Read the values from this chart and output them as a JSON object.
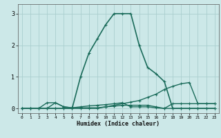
{
  "title": "",
  "xlabel": "Humidex (Indice chaleur)",
  "bg_color": "#cce8e8",
  "line_color": "#1a6b5a",
  "grid_color": "#aacece",
  "xlim": [
    -0.5,
    23.5
  ],
  "ylim": [
    -0.15,
    3.3
  ],
  "yticks": [
    0,
    1,
    2,
    3
  ],
  "xticks": [
    0,
    1,
    2,
    3,
    4,
    5,
    6,
    7,
    8,
    9,
    10,
    11,
    12,
    13,
    14,
    15,
    16,
    17,
    18,
    19,
    20,
    21,
    22,
    23
  ],
  "series": [
    {
      "x": [
        0,
        1,
        2,
        3,
        4,
        5,
        6,
        7,
        8,
        9,
        10,
        11,
        12,
        13,
        14,
        15,
        16,
        17,
        18,
        19,
        20,
        21,
        22,
        23
      ],
      "y": [
        0,
        0,
        0,
        0,
        0,
        0,
        0,
        1.0,
        1.75,
        2.2,
        2.65,
        3.0,
        3.0,
        3.0,
        2.0,
        1.3,
        1.1,
        0.85,
        0,
        0,
        0,
        0,
        0,
        0
      ],
      "linewidth": 1.2,
      "marker": "+"
    },
    {
      "x": [
        0,
        1,
        2,
        3,
        4,
        5,
        6,
        7,
        8,
        9,
        10,
        11,
        12,
        13,
        14,
        15,
        16,
        17,
        18,
        19,
        20,
        21,
        22,
        23
      ],
      "y": [
        0,
        0,
        0,
        0,
        0,
        0,
        0,
        0,
        0,
        0,
        0.05,
        0.1,
        0.15,
        0.2,
        0.25,
        0.35,
        0.45,
        0.6,
        0.7,
        0.78,
        0.82,
        0.15,
        0.15,
        0.15
      ],
      "linewidth": 1.0,
      "marker": "+"
    },
    {
      "x": [
        0,
        1,
        2,
        3,
        4,
        5,
        6,
        7,
        8,
        9,
        10,
        11,
        12,
        13,
        14,
        15,
        16,
        17,
        18,
        19,
        20,
        21,
        22,
        23
      ],
      "y": [
        0,
        0,
        0,
        0.18,
        0.18,
        0.05,
        0.02,
        0.02,
        0.02,
        0.02,
        0.05,
        0.07,
        0.1,
        0.1,
        0.1,
        0.1,
        0.05,
        0,
        0.15,
        0.15,
        0.15,
        0.15,
        0.15,
        0.15
      ],
      "linewidth": 1.0,
      "marker": "+"
    },
    {
      "x": [
        0,
        1,
        2,
        3,
        4,
        5,
        6,
        7,
        8,
        9,
        10,
        11,
        12,
        13,
        14,
        15,
        16,
        17,
        18,
        19,
        20,
        21,
        22,
        23
      ],
      "y": [
        0,
        0,
        0,
        0,
        0.18,
        0.05,
        0.02,
        0.05,
        0.08,
        0.1,
        0.12,
        0.15,
        0.18,
        0.05,
        0.05,
        0.05,
        0.02,
        0,
        0,
        0,
        0,
        0,
        0,
        0
      ],
      "linewidth": 1.0,
      "marker": "+"
    }
  ]
}
